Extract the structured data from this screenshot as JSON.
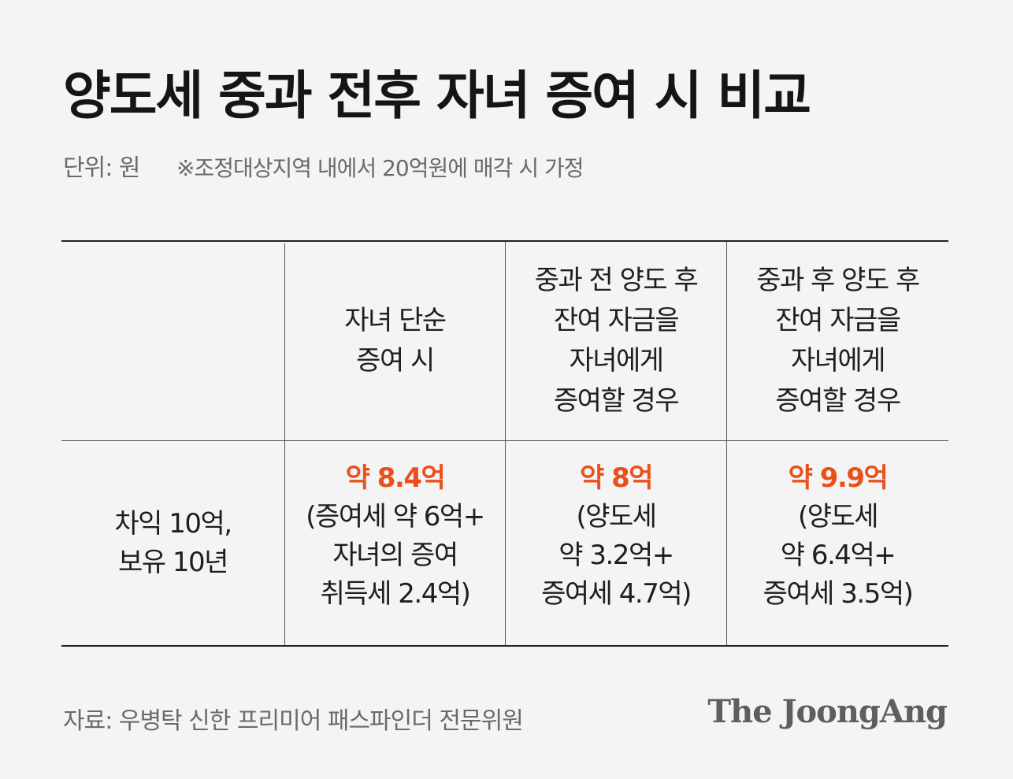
{
  "title": "양도세 중과 전후 자녀 증여 시 비교",
  "unit": "단위: 원",
  "note": "※조정대상지역 내에서 20억원에 매각 시 가정",
  "table": {
    "headers": [
      [
        "자녀 단순",
        "증여 시"
      ],
      [
        "중과 전 양도 후",
        "잔여 자금을",
        "자녀에게",
        "증여할 경우"
      ],
      [
        "중과 후 양도 후",
        "잔여 자금을",
        "자녀에게",
        "증여할 경우"
      ]
    ],
    "row_label": [
      "차익 10억,",
      "보유 10년"
    ],
    "cells": [
      {
        "highlight": "약 8.4억",
        "detail": [
          "(증여세 약 6억+",
          "자녀의 증여",
          "취득세 2.4억)"
        ]
      },
      {
        "highlight": "약 8억",
        "detail": [
          "(양도세",
          "약 3.2억+",
          "증여세 4.7억)"
        ]
      },
      {
        "highlight": "약 9.9억",
        "detail": [
          "(양도세",
          "약 6.4억+",
          "증여세 3.5억)"
        ]
      }
    ]
  },
  "source": "자료: 우병탁 신한 프리미어 패스파인더 전문위원",
  "logo": "The JoongAng",
  "colors": {
    "highlight": "#e8511c",
    "text": "#1e1e1e",
    "muted": "#6a6a6a",
    "background": "#f4f4f4"
  }
}
